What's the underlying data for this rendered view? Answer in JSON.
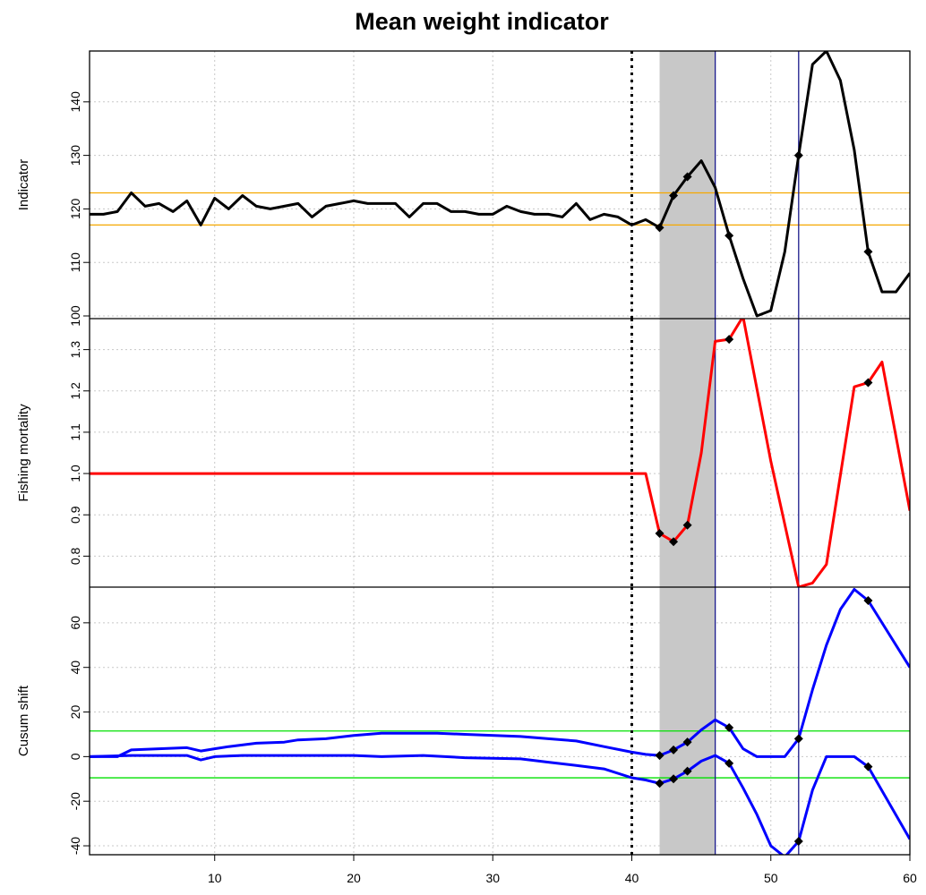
{
  "chart_data": {
    "type": "line",
    "title": "Mean weight indicator",
    "xlim": [
      1,
      60
    ],
    "x_ticks": [
      10,
      20,
      30,
      40,
      50,
      60
    ],
    "grid": true,
    "vertical_lines": {
      "dotted": 40,
      "blue": [
        46,
        52
      ]
    },
    "shaded_region": [
      42,
      46
    ],
    "panels": [
      {
        "ylabel": "Indicator",
        "ylim": [
          99.5,
          149.5
        ],
        "y_ticks": [
          100,
          110,
          120,
          130,
          140
        ],
        "hlines": [
          {
            "y": 117,
            "color": "#f5a800"
          },
          {
            "y": 123,
            "color": "#f5a800"
          }
        ],
        "series": [
          {
            "color": "#000000",
            "points": [
              [
                1,
                119
              ],
              [
                2,
                119
              ],
              [
                3,
                119.5
              ],
              [
                4,
                123
              ],
              [
                5,
                120.5
              ],
              [
                6,
                121
              ],
              [
                7,
                119.5
              ],
              [
                8,
                121.5
              ],
              [
                9,
                117
              ],
              [
                10,
                122
              ],
              [
                11,
                120
              ],
              [
                12,
                122.5
              ],
              [
                13,
                120.5
              ],
              [
                14,
                120
              ],
              [
                15,
                120.5
              ],
              [
                16,
                121
              ],
              [
                17,
                118.5
              ],
              [
                18,
                120.5
              ],
              [
                19,
                121
              ],
              [
                20,
                121.5
              ],
              [
                21,
                121
              ],
              [
                22,
                121
              ],
              [
                23,
                121
              ],
              [
                24,
                118.5
              ],
              [
                25,
                121
              ],
              [
                26,
                121
              ],
              [
                27,
                119.5
              ],
              [
                28,
                119.5
              ],
              [
                29,
                119
              ],
              [
                30,
                119
              ],
              [
                31,
                120.5
              ],
              [
                32,
                119.5
              ],
              [
                33,
                119
              ],
              [
                34,
                119
              ],
              [
                35,
                118.5
              ],
              [
                36,
                121
              ],
              [
                37,
                118
              ],
              [
                38,
                119
              ],
              [
                39,
                118.5
              ],
              [
                40,
                117
              ],
              [
                41,
                118
              ],
              [
                42,
                116.5
              ],
              [
                43,
                122.5
              ],
              [
                44,
                126
              ],
              [
                45,
                129
              ],
              [
                46,
                124
              ],
              [
                47,
                115
              ],
              [
                48,
                107
              ],
              [
                49,
                100
              ],
              [
                50,
                101
              ],
              [
                51,
                112
              ],
              [
                52,
                130
              ],
              [
                53,
                147
              ],
              [
                54,
                149.5
              ],
              [
                55,
                144
              ],
              [
                56,
                131
              ],
              [
                57,
                112
              ],
              [
                58,
                104.5
              ],
              [
                59,
                104.5
              ],
              [
                60,
                108
              ]
            ],
            "markers_x": [
              42,
              43,
              44,
              47,
              52,
              57
            ]
          }
        ]
      },
      {
        "ylabel": "Fishing mortality",
        "ylim": [
          0.725,
          1.375
        ],
        "y_ticks": [
          0.8,
          0.9,
          1.0,
          1.1,
          1.2,
          1.3
        ],
        "y_tick_labels": [
          "0.8",
          "0.9",
          "1.0",
          "1.1",
          "1.2",
          "1.3"
        ],
        "hlines": [],
        "series": [
          {
            "color": "#ff0000",
            "points": [
              [
                1,
                1.0
              ],
              [
                41,
                1.0
              ],
              [
                42,
                0.855
              ],
              [
                43,
                0.835
              ],
              [
                44,
                0.875
              ],
              [
                45,
                1.05
              ],
              [
                46,
                1.32
              ],
              [
                47,
                1.325
              ],
              [
                48,
                1.38
              ],
              [
                50,
                1.03
              ],
              [
                52,
                0.725
              ],
              [
                53,
                0.735
              ],
              [
                54,
                0.78
              ],
              [
                56,
                1.21
              ],
              [
                57,
                1.22
              ],
              [
                58,
                1.27
              ],
              [
                60,
                0.91
              ]
            ],
            "markers_x": [
              42,
              43,
              44,
              47,
              57
            ]
          }
        ]
      },
      {
        "ylabel": "Cusum shift",
        "ylim": [
          -44,
          76
        ],
        "y_ticks": [
          -40,
          -20,
          0,
          20,
          40,
          60
        ],
        "hlines": [
          {
            "y": 11.5,
            "color": "#00e000"
          },
          {
            "y": -9.5,
            "color": "#00e000"
          }
        ],
        "series": [
          {
            "color": "#0000ff",
            "points": [
              [
                1,
                0
              ],
              [
                3,
                0
              ],
              [
                4,
                3
              ],
              [
                6,
                3.5
              ],
              [
                8,
                4
              ],
              [
                9,
                2.5
              ],
              [
                10,
                3.5
              ],
              [
                11,
                4.5
              ],
              [
                13,
                6
              ],
              [
                15,
                6.5
              ],
              [
                16,
                7.5
              ],
              [
                18,
                8
              ],
              [
                20,
                9.5
              ],
              [
                22,
                10.5
              ],
              [
                26,
                10.5
              ],
              [
                28,
                10
              ],
              [
                32,
                9
              ],
              [
                34,
                8
              ],
              [
                36,
                7
              ],
              [
                38,
                4.5
              ],
              [
                40,
                2
              ],
              [
                41,
                1
              ],
              [
                42,
                0.5
              ],
              [
                43,
                3
              ],
              [
                44,
                6.5
              ],
              [
                45,
                12
              ],
              [
                46,
                16.5
              ],
              [
                47,
                13
              ],
              [
                48,
                3.5
              ],
              [
                49,
                0
              ],
              [
                51,
                0
              ],
              [
                52,
                8
              ],
              [
                53,
                30
              ],
              [
                54,
                50
              ],
              [
                55,
                66
              ],
              [
                56,
                75
              ],
              [
                57,
                70
              ],
              [
                60,
                40
              ]
            ],
            "markers_x": [
              42,
              43,
              44,
              47,
              52,
              57
            ]
          },
          {
            "color": "#0000ff",
            "points": [
              [
                1,
                0
              ],
              [
                4,
                0.5
              ],
              [
                8,
                0.5
              ],
              [
                9,
                -1.5
              ],
              [
                10,
                0
              ],
              [
                12,
                0.5
              ],
              [
                20,
                0.5
              ],
              [
                22,
                0
              ],
              [
                25,
                0.5
              ],
              [
                28,
                -0.5
              ],
              [
                32,
                -1
              ],
              [
                34,
                -2.5
              ],
              [
                36,
                -4
              ],
              [
                38,
                -5.5
              ],
              [
                40,
                -9.5
              ],
              [
                41,
                -10.5
              ],
              [
                42,
                -12
              ],
              [
                43,
                -10
              ],
              [
                44,
                -6.5
              ],
              [
                45,
                -2
              ],
              [
                46,
                0.5
              ],
              [
                47,
                -3
              ],
              [
                48,
                -14
              ],
              [
                49,
                -26
              ],
              [
                50,
                -40
              ],
              [
                51,
                -45
              ],
              [
                52,
                -38
              ],
              [
                53,
                -15
              ],
              [
                54,
                0
              ],
              [
                56,
                0
              ],
              [
                57,
                -4.5
              ],
              [
                60,
                -37
              ]
            ],
            "markers_x": [
              42,
              43,
              44,
              47,
              52,
              57
            ]
          }
        ]
      }
    ]
  }
}
